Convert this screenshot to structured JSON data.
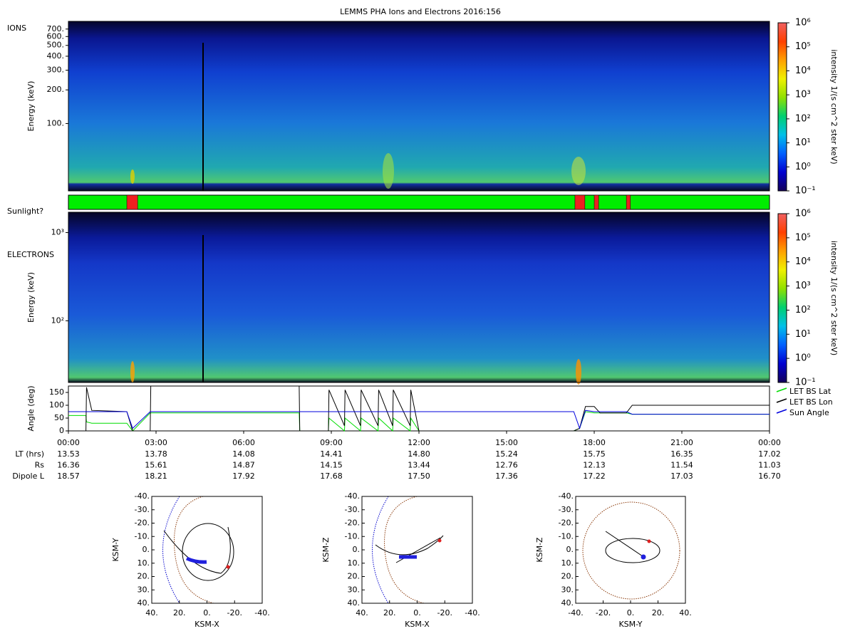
{
  "title": "LEMMS PHA Ions and Electrons  2016:156",
  "chart_data": [
    {
      "type": "heatmap",
      "panel_label": "IONS",
      "ylabel": "Energy (keV)",
      "yscale": "log",
      "ylim": [
        25,
        820
      ],
      "yticks": [
        {
          "value": 100,
          "label": "100."
        },
        {
          "value": 200,
          "label": "200."
        },
        {
          "value": 300,
          "label": "300."
        },
        {
          "value": 400,
          "label": "400."
        },
        {
          "value": 500,
          "label": "500."
        },
        {
          "value": 600,
          "label": "600."
        },
        {
          "value": 700,
          "label": "700."
        }
      ],
      "colorbar_label": "intensity 1/(s cm^2 ster keV)",
      "clim": [
        0.1,
        1000000
      ],
      "cticks": [
        {
          "value": 0.1,
          "label": "10⁻¹"
        },
        {
          "value": 1,
          "label": "10⁰"
        },
        {
          "value": 10,
          "label": "10¹"
        },
        {
          "value": 100,
          "label": "10²"
        },
        {
          "value": 1000,
          "label": "10³"
        },
        {
          "value": 10000,
          "label": "10⁴"
        },
        {
          "value": 100000,
          "label": "10⁵"
        },
        {
          "value": 1000000,
          "label": "10⁶"
        }
      ],
      "colormap": [
        "#14005a",
        "#0000d0",
        "#0060ff",
        "#00c0e8",
        "#00d070",
        "#90e000",
        "#f0f000",
        "#ffa000",
        "#ff4000",
        "#f06060"
      ]
    },
    {
      "type": "timeline",
      "label": "Sunlight?",
      "xlim": [
        0,
        24
      ],
      "color": "#00ee00",
      "intervals": [
        {
          "start": 2.0,
          "end": 2.37,
          "color": "#ee2020"
        },
        {
          "start": 17.34,
          "end": 17.68,
          "color": "#ee2020"
        },
        {
          "start": 18.0,
          "end": 18.15,
          "color": "#ee2020"
        },
        {
          "start": 19.1,
          "end": 19.24,
          "color": "#ee2020"
        }
      ]
    },
    {
      "type": "heatmap",
      "panel_label": "ELECTRONS",
      "ylabel": "Energy (keV)",
      "yscale": "log",
      "ylim": [
        20,
        1700
      ],
      "yticks": [
        {
          "value": 100,
          "label": "10²"
        },
        {
          "value": 1000,
          "label": "10³"
        }
      ],
      "colorbar_label": "intensity 1/(s cm^2 ster keV)",
      "clim": [
        0.1,
        1000000
      ],
      "cticks": [
        {
          "value": 0.1,
          "label": "10⁻¹"
        },
        {
          "value": 1,
          "label": "10⁰"
        },
        {
          "value": 10,
          "label": "10¹"
        },
        {
          "value": 100,
          "label": "10²"
        },
        {
          "value": 1000,
          "label": "10³"
        },
        {
          "value": 10000,
          "label": "10⁴"
        },
        {
          "value": 100000,
          "label": "10⁵"
        },
        {
          "value": 1000000,
          "label": "10⁶"
        }
      ],
      "colormap": [
        "#14005a",
        "#0000d0",
        "#0060ff",
        "#00c0e8",
        "#00d070",
        "#90e000",
        "#f0f000",
        "#ffa000",
        "#ff4000",
        "#f06060"
      ]
    },
    {
      "type": "line",
      "ylabel": "Angle (deg)",
      "xlim": [
        0,
        24
      ],
      "ylim": [
        0,
        175
      ],
      "yticks": [
        0,
        50,
        100,
        150
      ],
      "xticks": [
        {
          "value": 0,
          "label": "00:00"
        },
        {
          "value": 3,
          "label": "03:00"
        },
        {
          "value": 6,
          "label": "06:00"
        },
        {
          "value": 9,
          "label": "09:00"
        },
        {
          "value": 12,
          "label": "12:00"
        },
        {
          "value": 15,
          "label": "15:00"
        },
        {
          "value": 18,
          "label": "18:00"
        },
        {
          "value": 21,
          "label": "21:00"
        },
        {
          "value": 24,
          "label": "00:00"
        }
      ],
      "x": [
        0,
        0.6,
        0.62,
        0.8,
        2.0,
        2.2,
        2.8,
        2.82,
        7.9,
        7.92,
        8.9,
        8.92,
        9.45,
        9.47,
        10.0,
        10.02,
        10.6,
        10.62,
        11.1,
        11.12,
        11.7,
        11.72,
        12.0,
        17.3,
        17.5,
        17.7,
        18.0,
        18.2,
        19.1,
        19.3,
        24
      ],
      "series": [
        {
          "name": "LET BS Lat",
          "color": "#00dd00",
          "values": [
            60,
            60,
            35,
            30,
            30,
            0,
            70,
            70,
            70,
            0,
            0,
            50,
            0,
            50,
            0,
            50,
            0,
            50,
            0,
            50,
            0,
            50,
            0,
            0,
            10,
            75,
            70,
            70,
            70,
            65,
            65
          ]
        },
        {
          "name": "LET BS Lon",
          "color": "#000000",
          "values": [
            0,
            0,
            170,
            80,
            75,
            0,
            0,
            175,
            175,
            0,
            0,
            160,
            20,
            160,
            20,
            160,
            20,
            160,
            20,
            160,
            20,
            160,
            0,
            0,
            10,
            95,
            95,
            70,
            70,
            100,
            100
          ]
        },
        {
          "name": "Sun Angle",
          "color": "#0000dd",
          "values": [
            75,
            75,
            75,
            75,
            75,
            10,
            75,
            75,
            75,
            75,
            75,
            75,
            75,
            75,
            75,
            75,
            75,
            75,
            75,
            75,
            75,
            75,
            75,
            75,
            10,
            80,
            75,
            75,
            75,
            65,
            65
          ]
        }
      ],
      "legend": "right",
      "ephemeris": [
        {
          "name": "LT (hrs)",
          "values": [
            "13.53",
            "13.78",
            "14.08",
            "14.41",
            "14.80",
            "15.24",
            "15.75",
            "16.35",
            "17.02"
          ]
        },
        {
          "name": "Rs",
          "values": [
            "16.36",
            "15.61",
            "14.87",
            "14.15",
            "13.44",
            "12.76",
            "12.13",
            "11.54",
            "11.03"
          ]
        },
        {
          "name": "Dipole L",
          "values": [
            "18.57",
            "18.21",
            "17.92",
            "17.68",
            "17.50",
            "17.36",
            "17.22",
            "17.03",
            "16.70"
          ]
        }
      ]
    },
    {
      "type": "orbit",
      "xlabel": "KSM-X",
      "ylabel": "KSM-Y",
      "xlim": [
        40,
        -40
      ],
      "ylim": [
        40,
        -40
      ],
      "xticks": [
        {
          "value": 40,
          "label": "40."
        },
        {
          "value": 20,
          "label": "20."
        },
        {
          "value": 0,
          "label": "0."
        },
        {
          "value": -20,
          "label": "-20."
        },
        {
          "value": -40,
          "label": "-40."
        }
      ],
      "yticks": [
        {
          "value": -40,
          "label": "-40."
        },
        {
          "value": -30,
          "label": "-30."
        },
        {
          "value": -20,
          "label": "-20."
        },
        {
          "value": -10,
          "label": "-10."
        },
        {
          "value": 0,
          "label": "0."
        },
        {
          "value": 10,
          "label": "10."
        },
        {
          "value": 20,
          "label": "20."
        },
        {
          "value": 30,
          "label": "30."
        },
        {
          "value": 40,
          "label": "40."
        }
      ]
    },
    {
      "type": "orbit",
      "xlabel": "KSM-X",
      "ylabel": "KSM-Z",
      "xlim": [
        40,
        -40
      ],
      "ylim": [
        40,
        -40
      ],
      "xticks": [
        {
          "value": 40,
          "label": "40."
        },
        {
          "value": 20,
          "label": "20."
        },
        {
          "value": 0,
          "label": "0."
        },
        {
          "value": -20,
          "label": "-20."
        },
        {
          "value": -40,
          "label": "-40."
        }
      ],
      "yticks": [
        {
          "value": -40,
          "label": "-40."
        },
        {
          "value": -30,
          "label": "-30."
        },
        {
          "value": -20,
          "label": "-20."
        },
        {
          "value": -10,
          "label": "-10."
        },
        {
          "value": 0,
          "label": "0."
        },
        {
          "value": 10,
          "label": "10."
        },
        {
          "value": 20,
          "label": "20."
        },
        {
          "value": 30,
          "label": "30."
        },
        {
          "value": 40,
          "label": "40."
        }
      ]
    },
    {
      "type": "orbit",
      "xlabel": "KSM-Y",
      "ylabel": "KSM-Z",
      "xlim": [
        -40,
        40
      ],
      "ylim": [
        40,
        -40
      ],
      "xticks": [
        {
          "value": -40,
          "label": "-40."
        },
        {
          "value": -20,
          "label": "-20."
        },
        {
          "value": 0,
          "label": "0."
        },
        {
          "value": 20,
          "label": "20."
        },
        {
          "value": 40,
          "label": "40."
        }
      ],
      "yticks": [
        {
          "value": -40,
          "label": "-40."
        },
        {
          "value": -30,
          "label": "-30."
        },
        {
          "value": -20,
          "label": "-20."
        },
        {
          "value": -10,
          "label": "-10."
        },
        {
          "value": 0,
          "label": "0."
        },
        {
          "value": 10,
          "label": "10."
        },
        {
          "value": 20,
          "label": "20."
        },
        {
          "value": 30,
          "label": "30."
        },
        {
          "value": 40,
          "label": "40."
        }
      ]
    }
  ]
}
